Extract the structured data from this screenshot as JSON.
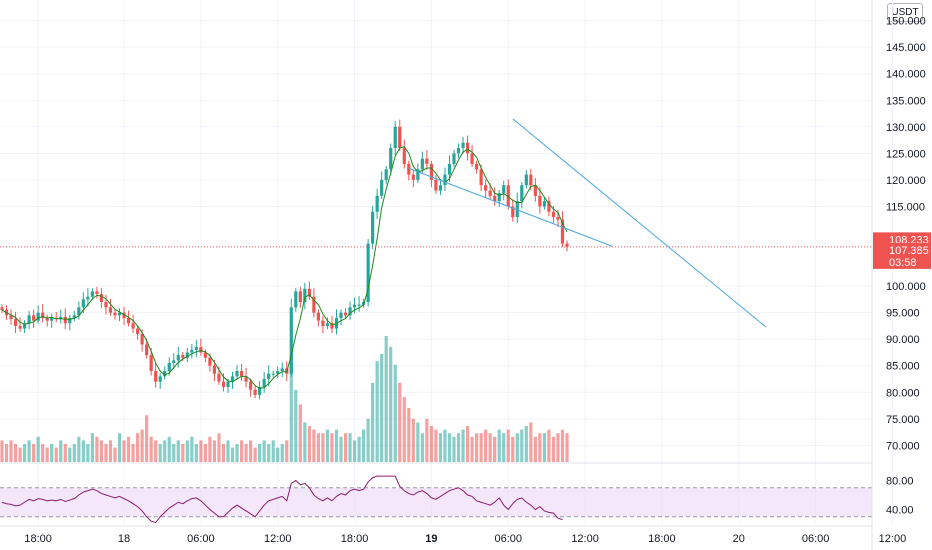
{
  "currency": "USDT",
  "colors": {
    "up": "#26a69a",
    "down": "#ef5350",
    "ma": "#1b8a1b",
    "trendline": "#4aa8e0",
    "rsi_line": "#8e1c6e",
    "rsi_band": "#ecd7f7",
    "last_price_line": "#ef5350",
    "grid": "#f0f3fa"
  },
  "price_axis": {
    "ticks": [
      "150.000",
      "145.000",
      "140.000",
      "135.000",
      "130.000",
      "125.000",
      "120.000",
      "115.000",
      "100.000",
      "95.000",
      "90.000",
      "85.000",
      "80.000",
      "75.000",
      "70.000"
    ],
    "tick_values": [
      150,
      145,
      140,
      135,
      130,
      125,
      120,
      115,
      100,
      95,
      90,
      85,
      80,
      75,
      70
    ]
  },
  "price_tags": {
    "tag1": "108.233",
    "tag2": "107.385",
    "countdown": "03:58"
  },
  "rsi_axis": {
    "ticks": [
      "80.00",
      "40.00"
    ],
    "tick_values": [
      80,
      40
    ]
  },
  "time_axis": [
    {
      "label": "18:00",
      "bold": false,
      "index": 8
    },
    {
      "label": "18",
      "bold": false,
      "index": 27
    },
    {
      "label": "06:00",
      "bold": false,
      "index": 44
    },
    {
      "label": "12:00",
      "bold": false,
      "index": 61
    },
    {
      "label": "18:00",
      "bold": false,
      "index": 78
    },
    {
      "label": "19",
      "bold": true,
      "index": 95
    },
    {
      "label": "06:00",
      "bold": false,
      "index": 112
    },
    {
      "label": "12:00",
      "bold": false,
      "index": 129
    },
    {
      "label": "18:00",
      "bold": false,
      "index": 146
    },
    {
      "label": "20",
      "bold": false,
      "index": 163
    },
    {
      "label": "06:00",
      "bold": false,
      "index": 180
    },
    {
      "label": "12:00",
      "bold": false,
      "index": 197
    }
  ],
  "chart_data": {
    "type": "candlestick",
    "price_range": [
      68,
      152
    ],
    "series_close": [
      95.5,
      94.5,
      93.8,
      92.5,
      92,
      93,
      94.5,
      93.5,
      95,
      94,
      93.5,
      94,
      93.8,
      94.2,
      93,
      94,
      94.5,
      96,
      97.5,
      98,
      99,
      98.5,
      97,
      96,
      95,
      94.5,
      95,
      94,
      93,
      92,
      91,
      89,
      87,
      84,
      82,
      83,
      84,
      85.5,
      86,
      87,
      86.5,
      87.5,
      88,
      88.5,
      87.5,
      86.5,
      85,
      83.5,
      82,
      81,
      82,
      83,
      84,
      83,
      82,
      80.5,
      79.5,
      81,
      82.5,
      83.5,
      83.5,
      84,
      84.5,
      83.5,
      96,
      99,
      97,
      99.5,
      98,
      95,
      93.5,
      92.5,
      93,
      92,
      94,
      95,
      94.5,
      96,
      96.5,
      96.5,
      97,
      108,
      114,
      117,
      120,
      122,
      126,
      130,
      126,
      123,
      121,
      120,
      122,
      124,
      123,
      120,
      118,
      119,
      121,
      123,
      125,
      126,
      127,
      125,
      123,
      122,
      119,
      118,
      117,
      116,
      117.5,
      119,
      115,
      113,
      116,
      119,
      121,
      119,
      117,
      115,
      116,
      114,
      113,
      112.5,
      108,
      107.4
    ],
    "levels": {
      "last_price_1": 108.233,
      "last_price_2": 107.385
    },
    "trendline_upper": {
      "start_index": 113,
      "start_value": 131.5,
      "end_index": 169,
      "end_value": 92.3
    },
    "trendline_lower": {
      "start_index": 90,
      "start_value": 122.2,
      "end_index": 135,
      "end_value": 107.5
    },
    "volume": [
      6,
      5,
      6,
      5,
      4,
      5,
      6,
      5,
      7,
      5,
      4,
      5,
      4,
      6,
      5,
      4,
      5,
      7,
      6,
      5,
      8,
      7,
      6,
      5,
      6,
      4,
      8,
      6,
      7,
      5,
      8,
      9,
      13,
      7,
      6,
      5,
      6,
      7,
      5,
      6,
      5,
      6,
      7,
      5,
      6,
      5,
      7,
      6,
      8,
      5,
      6,
      4,
      5,
      6,
      5,
      6,
      4,
      5,
      6,
      5,
      6,
      4,
      5,
      6,
      30,
      20,
      16,
      11,
      10,
      9,
      8,
      8,
      9,
      8,
      9,
      7,
      8,
      8,
      6,
      7,
      9,
      12,
      22,
      28,
      30,
      35,
      32,
      27,
      22,
      18,
      15,
      12,
      11,
      8,
      12,
      10,
      9,
      8,
      9,
      8,
      7,
      8,
      9,
      10,
      7,
      8,
      8,
      9,
      8,
      7,
      9,
      8,
      9,
      7,
      8,
      9,
      10,
      11,
      7,
      8,
      8,
      9,
      7,
      8,
      9,
      8,
      18,
      8
    ],
    "rsi": {
      "range": [
        20,
        100
      ],
      "band": [
        30,
        70
      ],
      "values": [
        50,
        48,
        47,
        45,
        46,
        50,
        54,
        52,
        55,
        54,
        52,
        53,
        52,
        54,
        51,
        53,
        55,
        60,
        64,
        66,
        68,
        66,
        62,
        60,
        58,
        56,
        58,
        55,
        52,
        48,
        44,
        38,
        30,
        24,
        22,
        30,
        36,
        42,
        46,
        50,
        48,
        52,
        55,
        56,
        52,
        46,
        40,
        35,
        30,
        30,
        36,
        42,
        46,
        42,
        38,
        34,
        30,
        38,
        46,
        52,
        54,
        56,
        58,
        52,
        76,
        80,
        74,
        76,
        70,
        60,
        55,
        52,
        56,
        52,
        58,
        62,
        60,
        66,
        68,
        66,
        68,
        78,
        84,
        86,
        86,
        86,
        86,
        86,
        72,
        66,
        62,
        60,
        64,
        66,
        62,
        56,
        54,
        58,
        62,
        66,
        68,
        70,
        66,
        60,
        58,
        52,
        50,
        48,
        46,
        50,
        56,
        46,
        40,
        48,
        54,
        56,
        50,
        46,
        40,
        44,
        38,
        36,
        35,
        28,
        26
      ]
    }
  }
}
